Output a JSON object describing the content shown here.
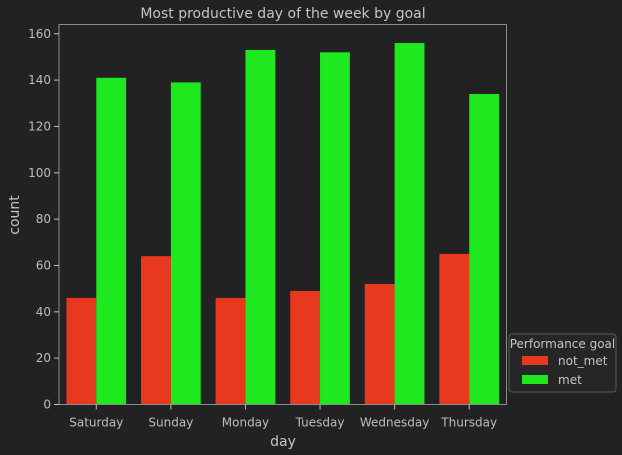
{
  "chart_data": {
    "type": "bar",
    "title": "Most productive day of the week by goal",
    "xlabel": "day",
    "ylabel": "count",
    "categories": [
      "Saturday",
      "Sunday",
      "Monday",
      "Tuesday",
      "Wednesday",
      "Thursday"
    ],
    "series": [
      {
        "name": "not_met",
        "values": [
          46,
          64,
          46,
          49,
          52,
          65
        ],
        "color": "#e8391e"
      },
      {
        "name": "met",
        "values": [
          141,
          139,
          153,
          152,
          156,
          134
        ],
        "color": "#1ee81e"
      }
    ],
    "ylim": [
      0,
      164
    ],
    "yticks": [
      0,
      20,
      40,
      60,
      80,
      100,
      120,
      140,
      160
    ],
    "grid": false,
    "legend": {
      "title": "Performance goal",
      "placement": "lower-right-outside"
    },
    "colors": {
      "background": "#222222",
      "axes_frame": "#8c8c8c",
      "text": "#c4c4c4"
    }
  }
}
